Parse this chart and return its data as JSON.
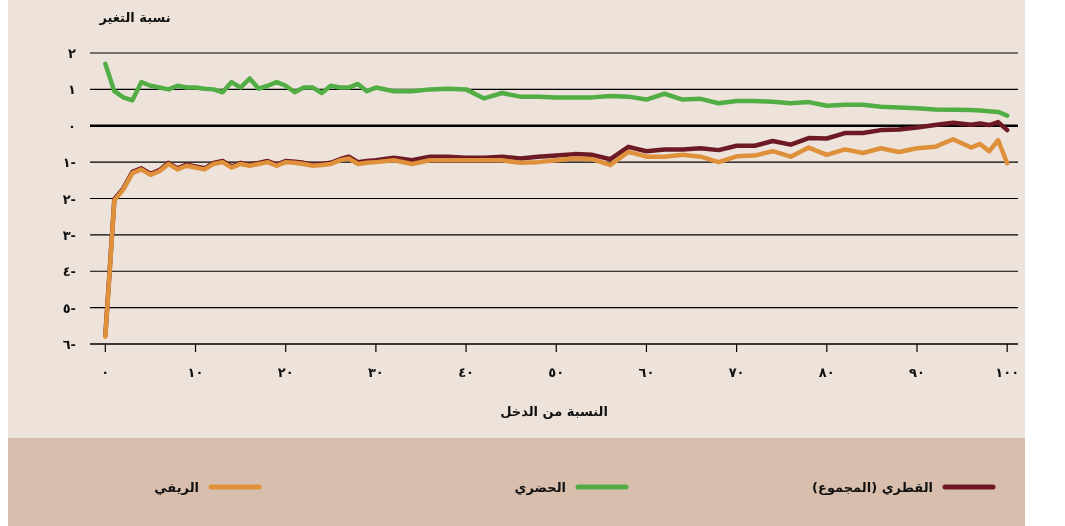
{
  "chart_data": {
    "type": "line",
    "ylabel": "نسبة التغير",
    "xlabel": "النسبة من الدخل",
    "x": [
      0,
      1,
      2,
      3,
      4,
      5,
      6,
      7,
      8,
      9,
      10,
      11,
      12,
      13,
      14,
      15,
      16,
      17,
      18,
      19,
      20,
      21,
      22,
      23,
      24,
      25,
      26,
      27,
      28,
      29,
      30,
      32,
      34,
      36,
      38,
      40,
      42,
      44,
      46,
      48,
      50,
      52,
      54,
      56,
      58,
      60,
      62,
      64,
      66,
      68,
      70,
      72,
      74,
      76,
      78,
      80,
      82,
      84,
      86,
      88,
      90,
      92,
      94,
      96,
      97,
      98,
      99,
      100
    ],
    "series": [
      {
        "name": "القطري (المجموع)",
        "color": "#6e1a24",
        "values": [
          -5.77,
          -2.02,
          -1.72,
          -1.27,
          -1.17,
          -1.32,
          -1.22,
          -1.02,
          -1.17,
          -1.07,
          -1.12,
          -1.17,
          -1.02,
          -0.97,
          -1.12,
          -1.02,
          -1.07,
          -1.02,
          -0.97,
          -1.07,
          -0.97,
          -0.99,
          -1.02,
          -1.07,
          -1.05,
          -1.02,
          -0.92,
          -0.85,
          -1.0,
          -0.97,
          -0.95,
          -0.88,
          -0.95,
          -0.85,
          -0.85,
          -0.88,
          -0.88,
          -0.85,
          -0.9,
          -0.85,
          -0.82,
          -0.78,
          -0.8,
          -0.92,
          -0.58,
          -0.7,
          -0.65,
          -0.65,
          -0.62,
          -0.67,
          -0.55,
          -0.55,
          -0.42,
          -0.52,
          -0.34,
          -0.35,
          -0.2,
          -0.2,
          -0.12,
          -0.1,
          -0.05,
          0.02,
          0.08,
          0.03,
          0.06,
          0.02,
          0.1,
          -0.12
        ]
      },
      {
        "name": "الحضري",
        "color": "#52ae44",
        "values": [
          1.7,
          0.95,
          0.78,
          0.7,
          1.2,
          1.1,
          1.05,
          1.0,
          1.1,
          1.05,
          1.05,
          1.02,
          1.0,
          0.92,
          1.2,
          1.05,
          1.3,
          1.02,
          1.1,
          1.2,
          1.1,
          0.92,
          1.05,
          1.05,
          0.9,
          1.1,
          1.05,
          1.05,
          1.15,
          0.95,
          1.05,
          0.95,
          0.95,
          1.0,
          1.02,
          1.0,
          0.75,
          0.9,
          0.8,
          0.8,
          0.78,
          0.78,
          0.78,
          0.82,
          0.8,
          0.72,
          0.88,
          0.72,
          0.74,
          0.62,
          0.68,
          0.68,
          0.66,
          0.62,
          0.65,
          0.55,
          0.58,
          0.58,
          0.52,
          0.5,
          0.48,
          0.45,
          0.44,
          0.43,
          0.42,
          0.4,
          0.38,
          0.28
        ]
      },
      {
        "name": "الريفي",
        "color": "#de903a",
        "values": [
          -5.8,
          -2.05,
          -1.75,
          -1.3,
          -1.2,
          -1.35,
          -1.25,
          -1.05,
          -1.2,
          -1.1,
          -1.15,
          -1.2,
          -1.05,
          -1.0,
          -1.15,
          -1.05,
          -1.1,
          -1.05,
          -1.0,
          -1.1,
          -1.0,
          -1.02,
          -1.05,
          -1.1,
          -1.08,
          -1.05,
          -0.95,
          -0.9,
          -1.05,
          -1.02,
          -1.0,
          -0.95,
          -1.05,
          -0.95,
          -0.95,
          -0.95,
          -0.95,
          -0.95,
          -1.02,
          -1.0,
          -0.95,
          -0.9,
          -0.92,
          -1.08,
          -0.72,
          -0.85,
          -0.85,
          -0.8,
          -0.85,
          -1.0,
          -0.84,
          -0.82,
          -0.7,
          -0.85,
          -0.6,
          -0.8,
          -0.65,
          -0.75,
          -0.62,
          -0.72,
          -0.62,
          -0.58,
          -0.37,
          -0.6,
          -0.5,
          -0.7,
          -0.4,
          -1.03
        ]
      }
    ],
    "xlim": [
      -1.7,
      101.2
    ],
    "ylim": [
      -6,
      2
    ],
    "xticks": [
      {
        "value": 0,
        "label": "٠"
      },
      {
        "value": 10,
        "label": "١٠"
      },
      {
        "value": 20,
        "label": "٢٠"
      },
      {
        "value": 30,
        "label": "٣٠"
      },
      {
        "value": 40,
        "label": "٤٠"
      },
      {
        "value": 50,
        "label": "٥٠"
      },
      {
        "value": 60,
        "label": "٦٠"
      },
      {
        "value": 70,
        "label": "٧٠"
      },
      {
        "value": 80,
        "label": "٨٠"
      },
      {
        "value": 90,
        "label": "٩٠"
      },
      {
        "value": 100,
        "label": "١٠٠"
      }
    ],
    "yticks": [
      {
        "value": 2,
        "label": "٢"
      },
      {
        "value": 1,
        "label": "١"
      },
      {
        "value": 0,
        "label": "٠"
      },
      {
        "value": -1,
        "label": "١-"
      },
      {
        "value": -2,
        "label": "٢-"
      },
      {
        "value": -3,
        "label": "٣-"
      },
      {
        "value": -4,
        "label": "٤-"
      },
      {
        "value": -5,
        "label": "٥-"
      },
      {
        "value": -6,
        "label": "٦-"
      }
    ],
    "ref_lines": [
      {
        "axis": "y",
        "value": 0
      }
    ],
    "grid": "y",
    "legend": "bottom"
  }
}
